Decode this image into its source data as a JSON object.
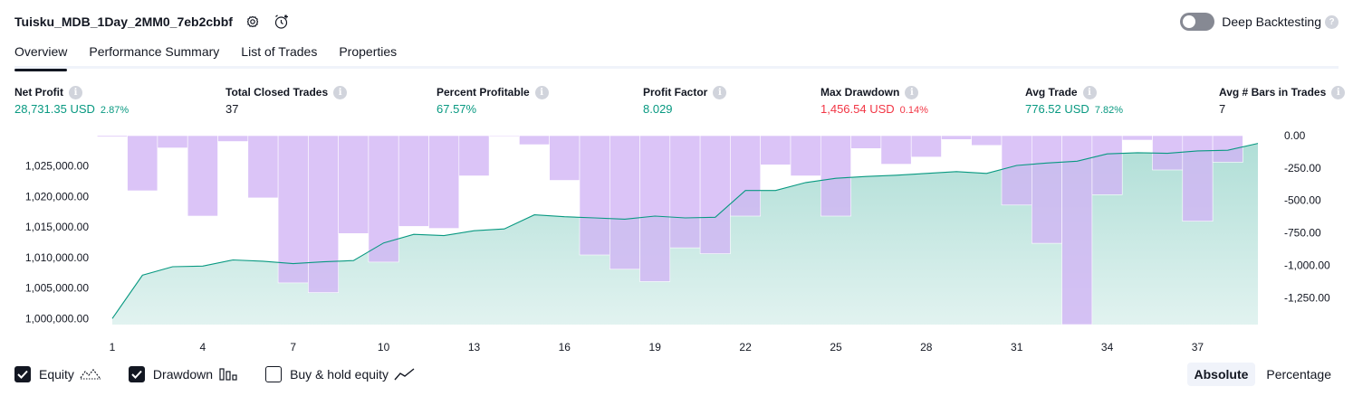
{
  "header": {
    "title": "Tuisku_MDB_1Day_2MM0_7eb2cbbf",
    "deep_backtesting_label": "Deep Backtesting",
    "help_glyph": "?",
    "icons": [
      "settings-icon",
      "alert-add-icon"
    ]
  },
  "tabs": [
    "Overview",
    "Performance Summary",
    "List of Trades",
    "Properties"
  ],
  "active_tab": "Overview",
  "metrics": [
    {
      "label": "Net Profit",
      "value": "28,731.35 USD",
      "pct": "2.87%",
      "color": "#089981"
    },
    {
      "label": "Total Closed Trades",
      "value": "37",
      "pct": "",
      "color": "#131722"
    },
    {
      "label": "Percent Profitable",
      "value": "67.57%",
      "pct": "",
      "color": "#089981"
    },
    {
      "label": "Profit Factor",
      "value": "8.029",
      "pct": "",
      "color": "#089981"
    },
    {
      "label": "Max Drawdown",
      "value": "1,456.54 USD",
      "pct": "0.14%",
      "color": "#f23645"
    },
    {
      "label": "Avg Trade",
      "value": "776.52 USD",
      "pct": "7.82%",
      "color": "#089981"
    },
    {
      "label": "Avg # Bars in Trades",
      "value": "7",
      "pct": "",
      "color": "#131722"
    }
  ],
  "info_glyph": "i",
  "chart_data": {
    "type": "area",
    "x_ticks": [
      "1",
      "4",
      "7",
      "10",
      "13",
      "16",
      "19",
      "22",
      "25",
      "28",
      "31",
      "34",
      "37"
    ],
    "left_axis": {
      "ticks": [
        "1,000,000.00",
        "1,005,000.00",
        "1,010,000.00",
        "1,015,000.00",
        "1,020,000.00",
        "1,025,000.00"
      ],
      "range": [
        999000,
        1030000
      ]
    },
    "right_axis": {
      "ticks": [
        "0.00",
        "-250.00",
        "-500.00",
        "-750.00",
        "-1,000.00",
        "-1,250.00"
      ],
      "range": [
        -1456.54,
        0
      ]
    },
    "series": [
      {
        "name": "Equity",
        "color": "#089981",
        "values": [
          1000000,
          1007100,
          1008500,
          1008600,
          1009600,
          1009400,
          1009000,
          1009300,
          1009500,
          1012400,
          1013800,
          1013600,
          1014400,
          1014700,
          1017000,
          1016700,
          1016500,
          1016300,
          1016800,
          1016500,
          1016600,
          1021000,
          1021000,
          1022300,
          1023000,
          1023300,
          1023500,
          1023800,
          1024100,
          1023800,
          1025100,
          1025500,
          1025800,
          1027000,
          1027200,
          1027100,
          1027500,
          1027600,
          1028731
        ]
      },
      {
        "name": "Drawdown",
        "color": "#d1b3f5",
        "values": [
          -10,
          -425,
          -95,
          -620,
          -45,
          -480,
          -1135,
          -1210,
          -755,
          -975,
          -700,
          -715,
          -310,
          -5,
          -70,
          -345,
          -920,
          -1030,
          -1125,
          -865,
          -910,
          -620,
          -225,
          -310,
          -620,
          -100,
          -220,
          -165,
          -30,
          -75,
          -535,
          -830,
          -1456.54,
          -455,
          -35,
          -265,
          -660,
          -205,
          0
        ]
      }
    ]
  },
  "legend": [
    {
      "label": "Equity",
      "checked": true,
      "icon": "equity-line-icon"
    },
    {
      "label": "Drawdown",
      "checked": true,
      "icon": "drawdown-bars-icon"
    },
    {
      "label": "Buy & hold equity",
      "checked": false,
      "icon": "buy-hold-line-icon"
    }
  ],
  "scale_options": [
    "Absolute",
    "Percentage"
  ],
  "scale_active": "Absolute"
}
